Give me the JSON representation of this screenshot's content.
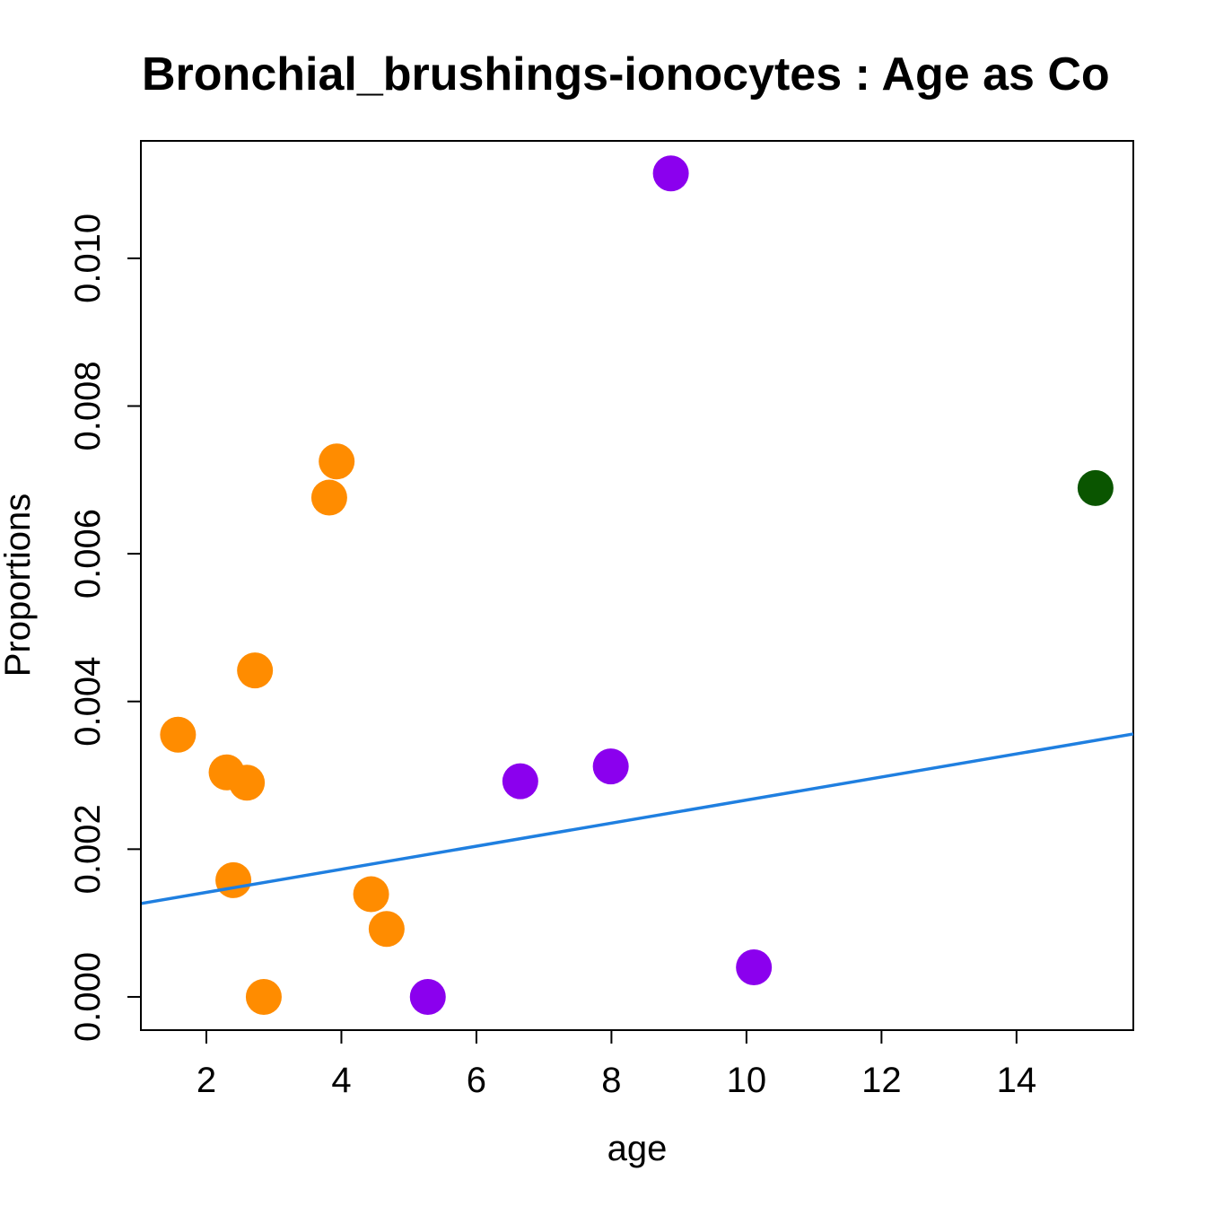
{
  "chart_data": {
    "type": "scatter",
    "title": "Bronchial_brushings-ionocytes : Age as Co",
    "xlabel": "age",
    "ylabel": "Proportions",
    "xlim": [
      1.03,
      15.73
    ],
    "ylim": [
      -0.00045,
      0.01159
    ],
    "xticks": [
      2,
      4,
      6,
      8,
      10,
      12,
      14
    ],
    "xtick_labels": [
      "2",
      "4",
      "6",
      "8",
      "10",
      "12",
      "14"
    ],
    "yticks": [
      0,
      0.002,
      0.004,
      0.006,
      0.008,
      0.01
    ],
    "ytick_labels": [
      "0.000",
      "0.002",
      "0.004",
      "0.006",
      "0.008",
      "0.010"
    ],
    "grid": false,
    "series": [
      {
        "name": "orange",
        "color": "#FF8C00",
        "points": [
          [
            1.58,
            0.00355
          ],
          [
            2.3,
            0.00304
          ],
          [
            2.6,
            0.0029
          ],
          [
            2.72,
            0.00442
          ],
          [
            2.4,
            0.00158
          ],
          [
            2.85,
            0.0
          ],
          [
            3.82,
            0.00676
          ],
          [
            3.93,
            0.00725
          ],
          [
            4.44,
            0.00139
          ],
          [
            4.67,
            0.00092
          ]
        ]
      },
      {
        "name": "purple",
        "color": "#8B00EE",
        "points": [
          [
            5.28,
            0.0
          ],
          [
            6.65,
            0.00292
          ],
          [
            7.99,
            0.00312
          ],
          [
            8.88,
            0.01115
          ],
          [
            10.11,
            0.0004
          ]
        ]
      },
      {
        "name": "green",
        "color": "#0A5500",
        "points": [
          [
            15.17,
            0.00689
          ]
        ]
      }
    ],
    "regression_line": {
      "color": "#1F7FE0",
      "intercept": 0.001103,
      "slope": 0.0001562
    }
  }
}
